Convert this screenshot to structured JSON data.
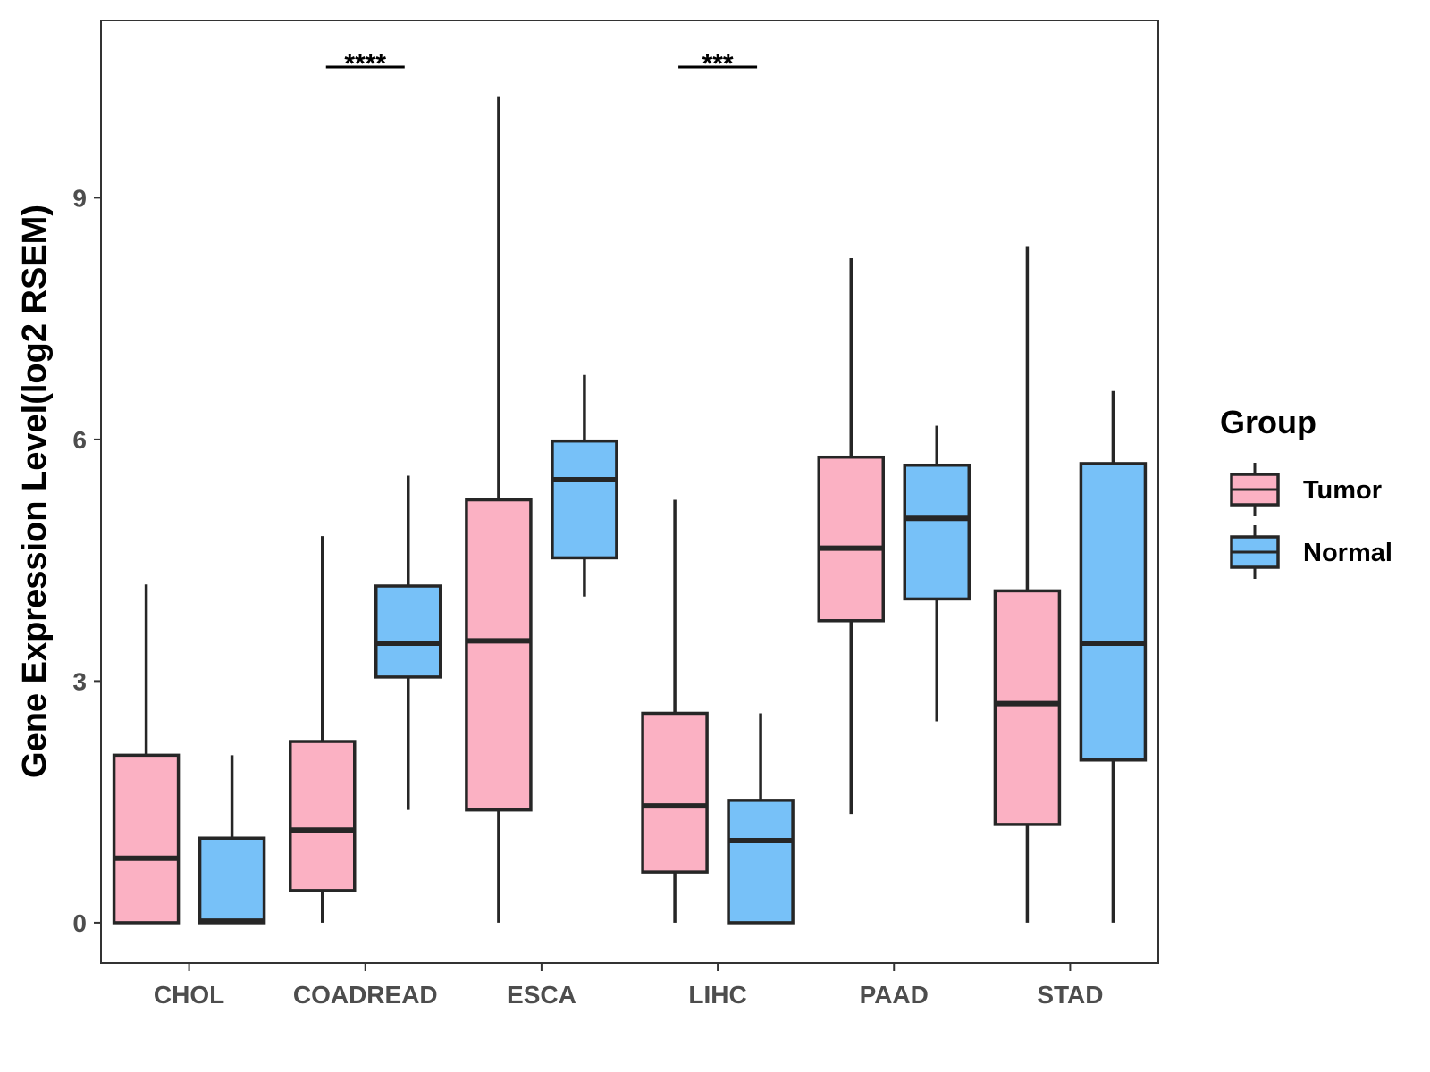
{
  "chart_data": {
    "type": "boxplot",
    "title": "",
    "xlabel": "",
    "ylabel": "Gene Expression Level(log2 RSEM)",
    "ylim": [
      -0.5,
      11.2
    ],
    "yticks": [
      0,
      3,
      6,
      9
    ],
    "categories": [
      "CHOL",
      "COADREAD",
      "ESCA",
      "LIHC",
      "PAAD",
      "STAD"
    ],
    "legend": {
      "title": "Group",
      "position": "right",
      "entries": [
        {
          "name": "Tumor",
          "color": "#FBB1C3"
        },
        {
          "name": "Normal",
          "color": "#77C1F8"
        }
      ]
    },
    "series": [
      {
        "name": "Tumor",
        "color": "#FBB1C3",
        "boxes": [
          {
            "min": 0.0,
            "q1": 0.0,
            "median": 0.8,
            "q3": 2.08,
            "max": 4.2
          },
          {
            "min": 0.0,
            "q1": 0.4,
            "median": 1.15,
            "q3": 2.25,
            "max": 4.8
          },
          {
            "min": 0.0,
            "q1": 1.4,
            "median": 3.5,
            "q3": 5.25,
            "max": 10.25
          },
          {
            "min": 0.0,
            "q1": 0.63,
            "median": 1.45,
            "q3": 2.6,
            "max": 5.25
          },
          {
            "min": 1.35,
            "q1": 3.75,
            "median": 4.65,
            "q3": 5.78,
            "max": 8.25
          },
          {
            "min": 0.0,
            "q1": 1.22,
            "median": 2.72,
            "q3": 4.12,
            "max": 8.4
          }
        ]
      },
      {
        "name": "Normal",
        "color": "#77C1F8",
        "boxes": [
          {
            "min": 0.0,
            "q1": 0.0,
            "median": 0.02,
            "q3": 1.05,
            "max": 2.08
          },
          {
            "min": 1.4,
            "q1": 3.05,
            "median": 3.47,
            "q3": 4.18,
            "max": 5.55
          },
          {
            "min": 4.05,
            "q1": 4.53,
            "median": 5.5,
            "q3": 5.98,
            "max": 6.8
          },
          {
            "min": 0.0,
            "q1": 0.0,
            "median": 1.02,
            "q3": 1.52,
            "max": 2.6
          },
          {
            "min": 2.5,
            "q1": 4.02,
            "median": 5.02,
            "q3": 5.68,
            "max": 6.17
          },
          {
            "min": 0.0,
            "q1": 2.02,
            "median": 3.47,
            "q3": 5.7,
            "max": 6.6
          }
        ]
      }
    ],
    "annotations": [
      {
        "category": "COADREAD",
        "label": "****"
      },
      {
        "category": "LIHC",
        "label": "***"
      }
    ]
  }
}
